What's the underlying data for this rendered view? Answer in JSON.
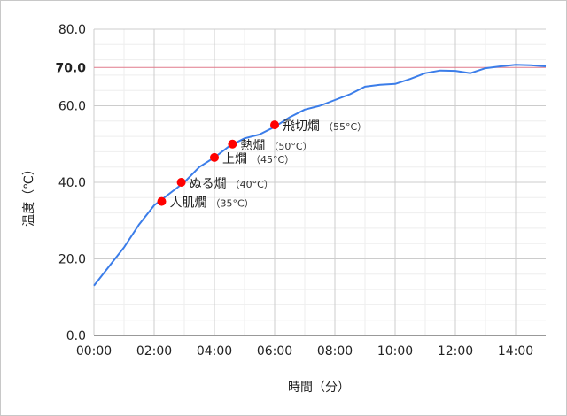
{
  "chart_data": {
    "type": "line",
    "title": "",
    "xlabel": "時間（分）",
    "ylabel": "温度（℃）",
    "xlim": [
      0,
      15
    ],
    "ylim": [
      0,
      80
    ],
    "grid": true,
    "x_ticks": [
      {
        "value": 0,
        "label": "00:00"
      },
      {
        "value": 2,
        "label": "02:00"
      },
      {
        "value": 4,
        "label": "04:00"
      },
      {
        "value": 6,
        "label": "06:00"
      },
      {
        "value": 8,
        "label": "08:00"
      },
      {
        "value": 10,
        "label": "10:00"
      },
      {
        "value": 12,
        "label": "12:00"
      },
      {
        "value": 14,
        "label": "14:00"
      }
    ],
    "y_ticks": [
      {
        "value": 0,
        "label": "0.0"
      },
      {
        "value": 20,
        "label": "20.0"
      },
      {
        "value": 40,
        "label": "40.0"
      },
      {
        "value": 60,
        "label": "60.0"
      },
      {
        "value": 70,
        "label": "70.0",
        "highlight": true
      },
      {
        "value": 80,
        "label": "80.0"
      }
    ],
    "reference_line": {
      "y": 70,
      "color": "#e07a8c",
      "label_color": "#cc0000"
    },
    "series": [
      {
        "color": "#3b7de9",
        "x": [
          0,
          0.5,
          1.0,
          1.5,
          2.0,
          2.5,
          3.0,
          3.5,
          4.0,
          4.5,
          5.0,
          5.5,
          6.0,
          6.5,
          7.0,
          7.5,
          8.0,
          8.5,
          9.0,
          9.5,
          10.0,
          10.5,
          11.0,
          11.5,
          12.0,
          12.5,
          13.0,
          13.5,
          14.0,
          14.5,
          15.0
        ],
        "y": [
          13,
          18,
          23,
          29,
          34,
          37,
          40,
          44,
          46.5,
          49.5,
          51.5,
          52.5,
          54.5,
          57,
          59,
          60,
          61.5,
          63,
          65,
          65.5,
          65.7,
          67,
          68.5,
          69.2,
          69.1,
          68.5,
          69.8,
          70.3,
          70.7,
          70.6,
          70.3
        ]
      }
    ],
    "annotations": [
      {
        "x": 2.25,
        "y": 35,
        "label": "人肌燗",
        "sub": "（35°C）"
      },
      {
        "x": 2.9,
        "y": 40,
        "label": "ぬる燗",
        "sub": "（40°C）"
      },
      {
        "x": 4.0,
        "y": 46.5,
        "label": "上燗",
        "sub": "（45°C）"
      },
      {
        "x": 4.6,
        "y": 50,
        "label": "熱燗",
        "sub": "（50°C）"
      },
      {
        "x": 6.0,
        "y": 55,
        "label": "飛切燗",
        "sub": "（55°C）"
      }
    ],
    "marker_color": "#ff0000"
  }
}
